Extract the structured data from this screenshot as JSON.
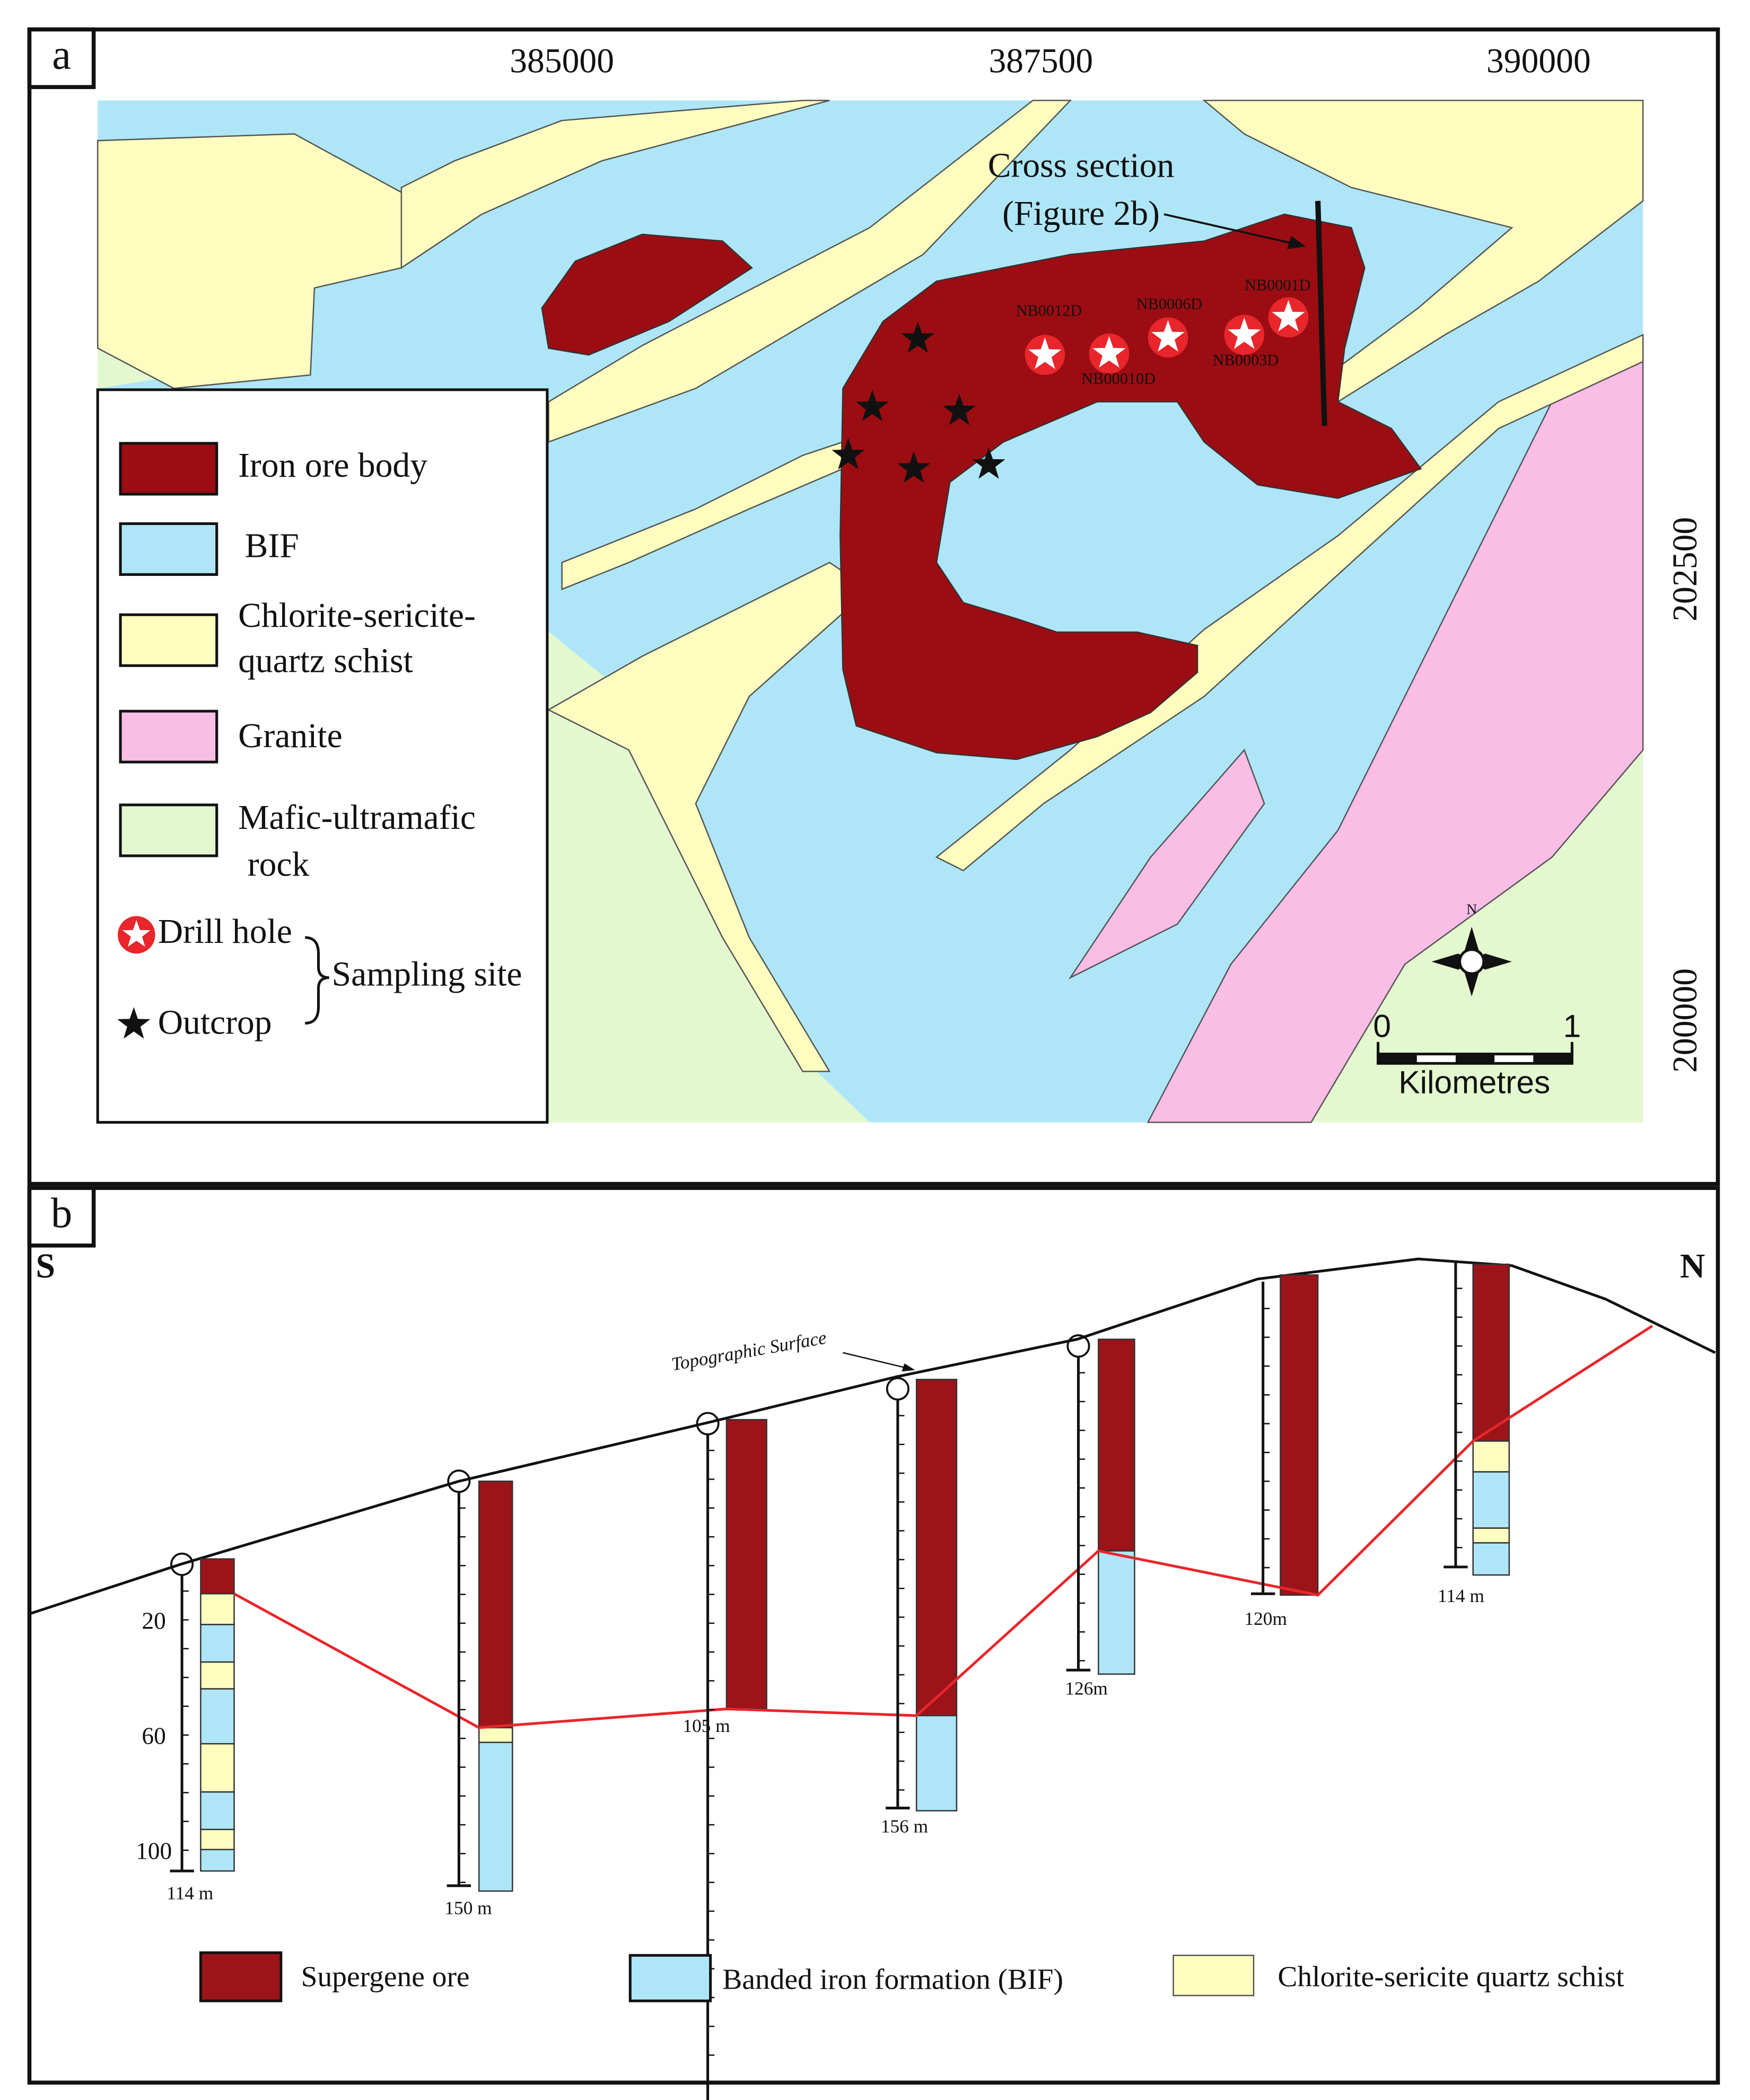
{
  "panel_a": {
    "label": "a",
    "x_ticks": [
      "385000",
      "387500",
      "390000"
    ],
    "y_ticks": [
      "202500",
      "200000"
    ],
    "legend": [
      [
        "Iron ore body"
      ],
      [
        "BIF"
      ],
      [
        "Chlorite-sericite-",
        "quartz schist"
      ],
      [
        "Granite"
      ],
      [
        "Mafic-ultramafic",
        "rock"
      ]
    ],
    "drill_hole_label": "Drill hole",
    "outcrop_label": "Outcrop",
    "sampling_site_label": "Sampling site",
    "drill_holes": [
      "NB0012D",
      "NB00010D",
      "NB0006D",
      "NB0003D",
      "NB0001D"
    ],
    "cross_section_label": [
      "Cross section",
      "(Figure 2b)"
    ],
    "north": "N",
    "scale": {
      "ticks": [
        "0",
        "1"
      ],
      "unit": "Kilometres"
    }
  },
  "panel_b": {
    "label": "b",
    "south": "S",
    "north": "N",
    "surface_label": "Topographic Surface",
    "depth_ticks": [
      "20",
      "60",
      "100"
    ],
    "holes": [
      "114 m",
      "150 m",
      "105 m",
      "156 m",
      "126m",
      "120m",
      "114 m"
    ],
    "legend": [
      "Supergene ore",
      "Banded iron formation (BIF)",
      "Chlorite-sericite quartz schist"
    ]
  }
}
